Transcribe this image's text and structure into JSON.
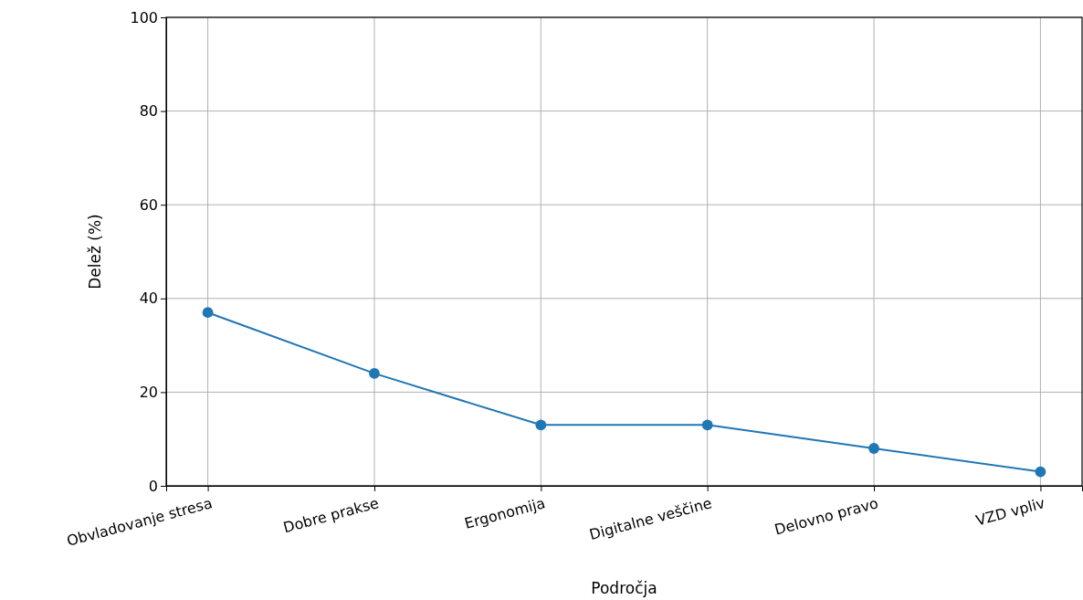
{
  "chart_data": {
    "type": "line",
    "xlabel": "Področja",
    "ylabel": "Delež (%)",
    "categories": [
      "Obvladovanje stresa",
      "Dobre prakse",
      "Ergonomija",
      "Digitalne veščine",
      "Delovno pravo",
      "VZD vpliv"
    ],
    "series": [
      {
        "color": "#1f77b4",
        "values": [
          37,
          24,
          13,
          13,
          8,
          3
        ]
      }
    ],
    "ylim": [
      0,
      100
    ],
    "yticks": [
      0,
      20,
      40,
      60,
      80,
      100
    ],
    "grid": true,
    "marker": "circle",
    "line_style": "solid"
  }
}
